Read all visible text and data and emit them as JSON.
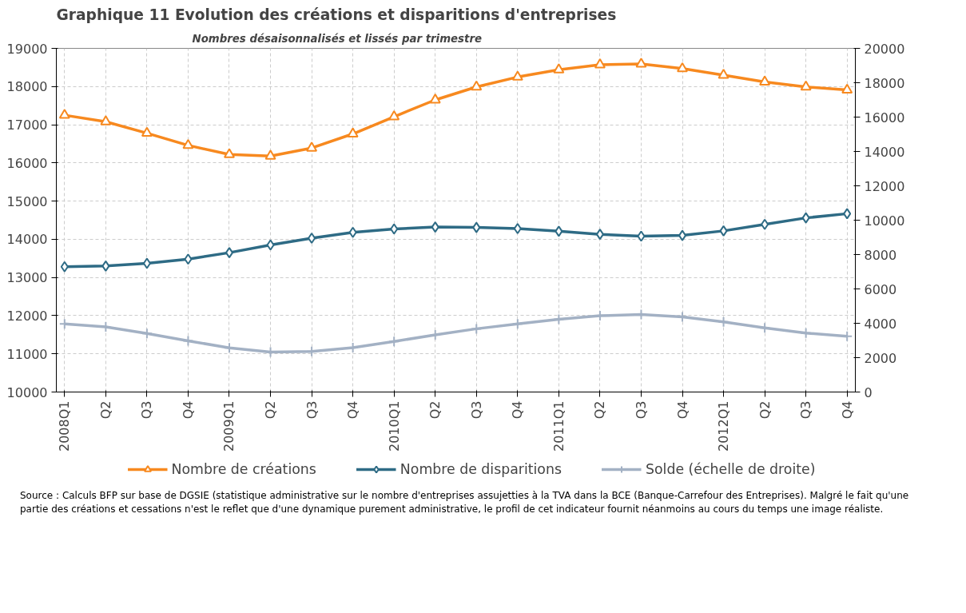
{
  "chart_data": {
    "type": "line",
    "title": "Evolution des créations et disparitions d'entreprises",
    "subtitle": "Nombres désaisonnalisés et lissés par trimestre",
    "annotations": [
      "Graphique 11",
      "Source :   Calculs BFP sur base de DGSIE (statistique administrative sur le nombre d'entreprises assujetties à la TVA dans la BCE (Banque-Carrefour des Entreprises). Malgré le fait qu'une partie des créations et cessations n'est le reflet que d'une dynamique purement administrative, le profil de cet indicateur fournit néanmoins au cours du temps une image réaliste."
    ],
    "categories": [
      "2008Q1",
      "Q2",
      "Q3",
      "Q4",
      "2009Q1",
      "Q2",
      "Q3",
      "Q4",
      "2010Q1",
      "Q2",
      "Q3",
      "Q4",
      "2011Q1",
      "Q2",
      "Q3",
      "Q4",
      "2012Q1",
      "Q2",
      "Q3",
      "Q4"
    ],
    "series": [
      {
        "name": "Nombre de créations",
        "color": "#f7891f",
        "marker": "triangle",
        "values": [
          17250,
          17080,
          16780,
          16460,
          16220,
          16180,
          16390,
          16760,
          17210,
          17650,
          17990,
          18250,
          18440,
          18570,
          18590,
          18470,
          18300,
          18120,
          17990,
          17910
        ]
      },
      {
        "name": "Nombre de disparitions",
        "color": "#2e6b85",
        "marker": "diamond",
        "values": [
          13280,
          13300,
          13370,
          13480,
          13650,
          13850,
          14030,
          14180,
          14270,
          14320,
          14310,
          14280,
          14210,
          14130,
          14080,
          14100,
          14220,
          14390,
          14560,
          14670
        ]
      },
      {
        "name": "Solde (échelle de droite)",
        "color": "#a3b1c4",
        "marker": "cross",
        "axis": "y2",
        "values": [
          3970,
          3790,
          3410,
          2980,
          2570,
          2330,
          2360,
          2580,
          2940,
          3330,
          3680,
          3970,
          4230,
          4440,
          4510,
          4370,
          4080,
          3730,
          3430,
          3240
        ]
      }
    ],
    "ylim": [
      10000,
      19000
    ],
    "yticks": [
      10000,
      11000,
      12000,
      13000,
      14000,
      15000,
      16000,
      17000,
      18000,
      19000
    ],
    "y2lim": [
      0,
      20000
    ],
    "y2ticks": [
      0,
      2000,
      4000,
      6000,
      8000,
      10000,
      12000,
      14000,
      16000,
      18000,
      20000
    ],
    "grid": true,
    "legend": "bottom",
    "line_style": "solid"
  }
}
